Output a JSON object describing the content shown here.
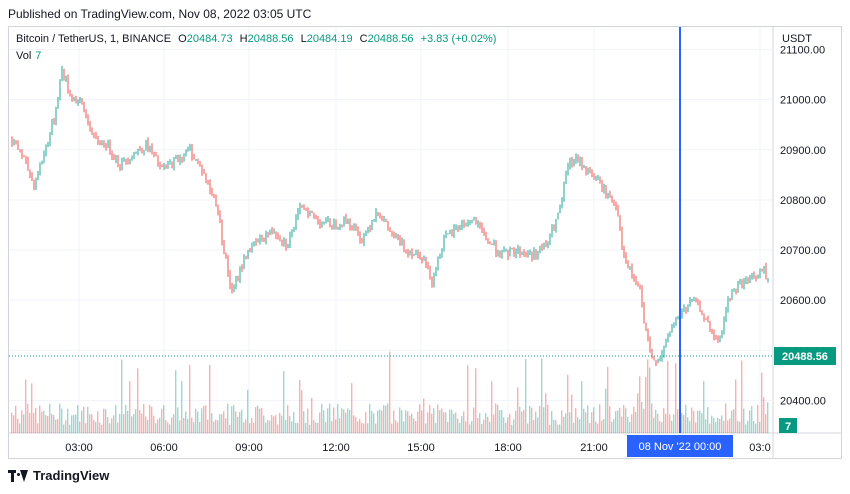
{
  "header": {
    "published": "Published on TradingView.com, Nov 08, 2022 03:05 UTC"
  },
  "legend": {
    "symbol": "Bitcoin / TetherUS, 1, BINANCE",
    "o_label": "O",
    "o_value": "20484.73",
    "h_label": "H",
    "h_value": "20488.56",
    "l_label": "L",
    "l_value": "20484.19",
    "c_label": "C",
    "c_value": "20488.56",
    "change": "+3.83 (+0.02%)",
    "vol_label": "Vol",
    "vol_value": "7"
  },
  "footer": {
    "brand": "TradingView"
  },
  "colors": {
    "up": "#26a69a",
    "down": "#ef5350",
    "crosshair": "#2962ff",
    "last_price": "#089981"
  },
  "chart_data": {
    "type": "candlestick",
    "currency": "USDT",
    "y_axis": {
      "ticks": [
        "21100.00",
        "21000.00",
        "20900.00",
        "20800.00",
        "20700.00",
        "20600.00",
        "20500.00",
        "20400.00"
      ],
      "ylim": [
        20335,
        21145
      ]
    },
    "x_axis": {
      "ticks": [
        "03:00",
        "06:00",
        "09:00",
        "12:00",
        "15:00",
        "18:00",
        "21:00",
        "03:0"
      ]
    },
    "crosshair_label": "08 Nov '22   00:00",
    "last_price": {
      "value": 20488.56,
      "label": "20488.56"
    },
    "volume_badge": "7",
    "price_path": [
      [
        0,
        20920
      ],
      [
        10,
        20890
      ],
      [
        22,
        20830
      ],
      [
        30,
        20880
      ],
      [
        42,
        20960
      ],
      [
        50,
        21060
      ],
      [
        58,
        21010
      ],
      [
        70,
        20990
      ],
      [
        82,
        20920
      ],
      [
        95,
        20910
      ],
      [
        108,
        20870
      ],
      [
        120,
        20890
      ],
      [
        135,
        20910
      ],
      [
        150,
        20860
      ],
      [
        165,
        20880
      ],
      [
        178,
        20900
      ],
      [
        190,
        20860
      ],
      [
        198,
        20820
      ],
      [
        205,
        20790
      ],
      [
        212,
        20700
      ],
      [
        220,
        20610
      ],
      [
        228,
        20660
      ],
      [
        236,
        20700
      ],
      [
        248,
        20720
      ],
      [
        262,
        20740
      ],
      [
        275,
        20710
      ],
      [
        290,
        20790
      ],
      [
        305,
        20760
      ],
      [
        320,
        20750
      ],
      [
        335,
        20760
      ],
      [
        350,
        20720
      ],
      [
        365,
        20780
      ],
      [
        380,
        20730
      ],
      [
        395,
        20700
      ],
      [
        410,
        20690
      ],
      [
        420,
        20640
      ],
      [
        432,
        20720
      ],
      [
        448,
        20750
      ],
      [
        462,
        20760
      ],
      [
        475,
        20720
      ],
      [
        490,
        20690
      ],
      [
        505,
        20700
      ],
      [
        520,
        20690
      ],
      [
        535,
        20710
      ],
      [
        548,
        20780
      ],
      [
        556,
        20870
      ],
      [
        565,
        20880
      ],
      [
        575,
        20860
      ],
      [
        585,
        20840
      ],
      [
        595,
        20810
      ],
      [
        605,
        20790
      ],
      [
        612,
        20680
      ],
      [
        620,
        20650
      ],
      [
        628,
        20620
      ],
      [
        633,
        20540
      ],
      [
        640,
        20480
      ],
      [
        650,
        20490
      ],
      [
        660,
        20550
      ],
      [
        672,
        20580
      ],
      [
        682,
        20600
      ],
      [
        692,
        20570
      ],
      [
        700,
        20530
      ],
      [
        708,
        20520
      ],
      [
        716,
        20600
      ],
      [
        726,
        20630
      ],
      [
        736,
        20640
      ],
      [
        746,
        20650
      ],
      [
        752,
        20660
      ],
      [
        757,
        20630
      ],
      [
        761,
        20560
      ],
      [
        764,
        20500
      ],
      [
        766,
        20488
      ]
    ],
    "volume_levels": [
      0.1,
      0.15,
      0.2,
      0.3,
      0.5,
      0.25,
      0.12,
      0.18,
      0.22,
      0.6,
      0.4,
      0.1
    ]
  }
}
